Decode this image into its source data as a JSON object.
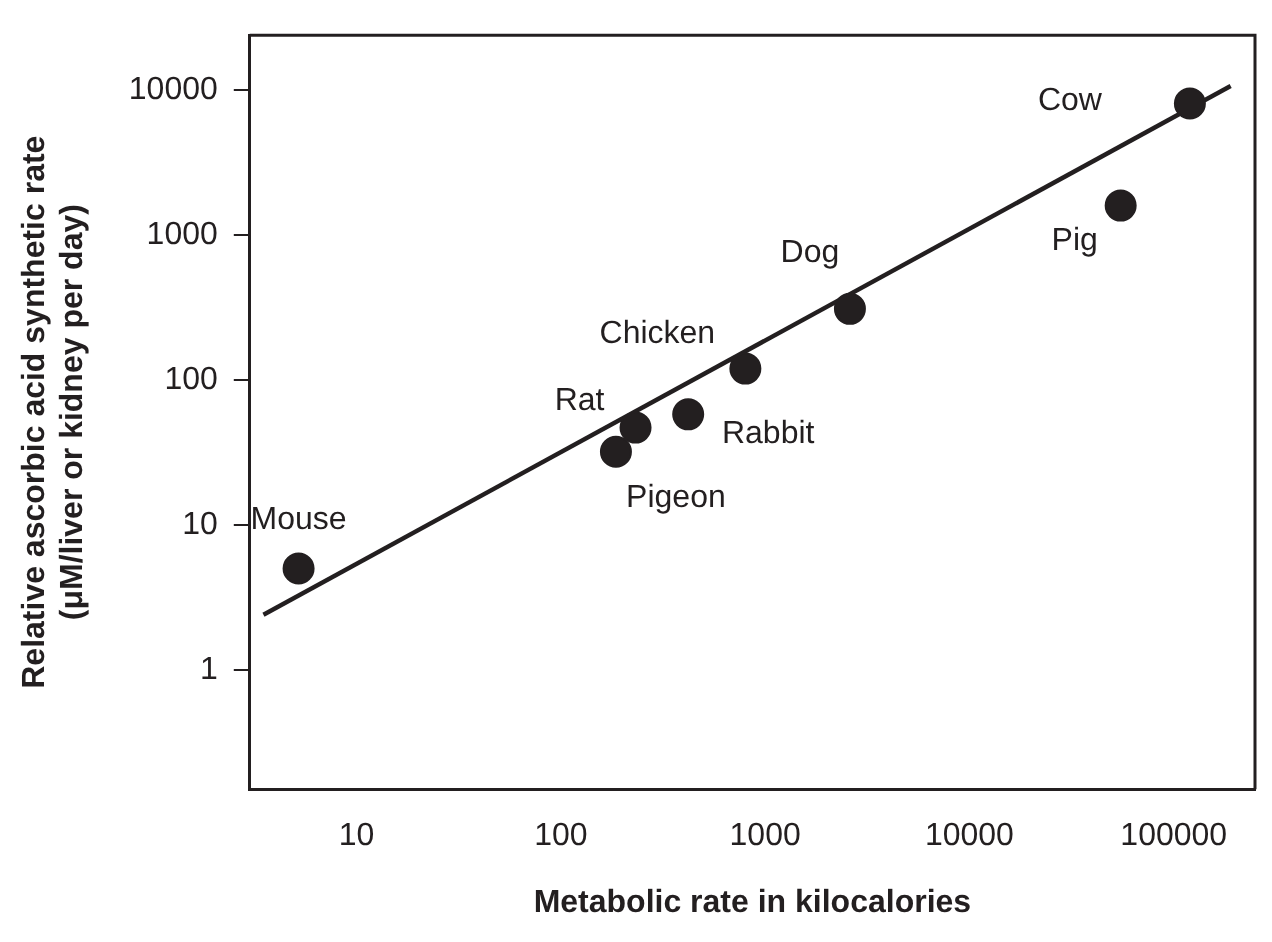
{
  "chart_data": {
    "type": "scatter",
    "xlabel": "Metabolic rate in kilocalories",
    "ylabel": "Relative ascorbic acid synthetic rate\n(μM/liver or kidney per day)",
    "log": "xy",
    "xlim": [
      3,
      250000
    ],
    "xticks": [
      10,
      100,
      1000,
      10000,
      100000
    ],
    "ylim": [
      0.15,
      24000
    ],
    "yticks": [
      1,
      10,
      100,
      1000,
      10000
    ],
    "grid": false,
    "marker": "circle",
    "series": [
      {
        "color": "#231f20",
        "x": [
          5.2,
          186,
          232,
          420,
          800,
          2600,
          55000,
          120000
        ],
        "values": [
          5.0,
          32,
          47,
          58,
          120,
          310,
          1600,
          8100
        ]
      },
      {
        "type": "line",
        "color": "#231f20",
        "line_style": "solid",
        "marker": "none",
        "x": [
          3.5,
          190000
        ],
        "values": [
          2.4,
          10700
        ]
      }
    ],
    "annotations": [
      {
        "text": "Mouse",
        "x": 5.2,
        "y": 5.0
      },
      {
        "text": "Pigeon",
        "x": 186,
        "y": 32
      },
      {
        "text": "Rat",
        "x": 232,
        "y": 47
      },
      {
        "text": "Rabbit",
        "x": 420,
        "y": 58
      },
      {
        "text": "Chicken",
        "x": 800,
        "y": 120
      },
      {
        "text": "Dog",
        "x": 2600,
        "y": 310
      },
      {
        "text": "Pig",
        "x": 55000,
        "y": 1600
      },
      {
        "text": "Cow",
        "x": 120000,
        "y": 8100
      }
    ]
  }
}
